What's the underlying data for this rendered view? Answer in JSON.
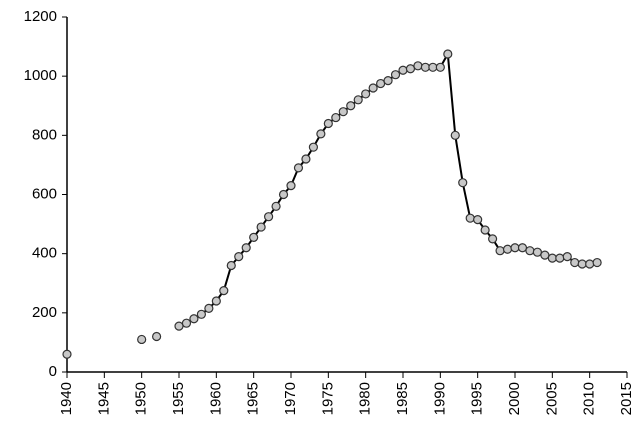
{
  "chart_data": {
    "type": "line",
    "x": [
      1940,
      1941,
      1942,
      1943,
      1944,
      1945,
      1946,
      1947,
      1948,
      1949,
      1950,
      1951,
      1952,
      1953,
      1954,
      1955,
      1956,
      1957,
      1958,
      1959,
      1960,
      1961,
      1962,
      1963,
      1964,
      1965,
      1966,
      1967,
      1968,
      1969,
      1970,
      1971,
      1972,
      1973,
      1974,
      1975,
      1976,
      1977,
      1978,
      1979,
      1980,
      1981,
      1982,
      1983,
      1984,
      1985,
      1986,
      1987,
      1988,
      1989,
      1990,
      1991,
      1992,
      1993,
      1994,
      1995,
      1996,
      1997,
      1998,
      1999,
      2000,
      2001,
      2002,
      2003,
      2004,
      2005,
      2006,
      2007,
      2008,
      2009,
      2010,
      2011
    ],
    "values": [
      60,
      null,
      null,
      null,
      null,
      null,
      null,
      null,
      null,
      null,
      110,
      null,
      120,
      null,
      null,
      155,
      165,
      180,
      195,
      215,
      240,
      275,
      360,
      390,
      420,
      455,
      490,
      525,
      560,
      600,
      630,
      690,
      720,
      760,
      805,
      840,
      860,
      880,
      900,
      920,
      940,
      960,
      975,
      985,
      1005,
      1020,
      1025,
      1035,
      1030,
      1030,
      1030,
      1075,
      800,
      640,
      520,
      515,
      480,
      450,
      410,
      415,
      420,
      420,
      410,
      405,
      395,
      385,
      385,
      390,
      370,
      365,
      365,
      370
    ],
    "color": "#000000",
    "marker_color": "#c8c8c8",
    "xlim": [
      1940,
      2015
    ],
    "xticks": [
      1940,
      1945,
      1950,
      1955,
      1960,
      1965,
      1970,
      1975,
      1980,
      1985,
      1990,
      1995,
      2000,
      2005,
      2010,
      2015
    ],
    "ylim": [
      0,
      1200
    ],
    "yticks": [
      0,
      200,
      400,
      600,
      800,
      1000,
      1200
    ],
    "grid": false
  }
}
